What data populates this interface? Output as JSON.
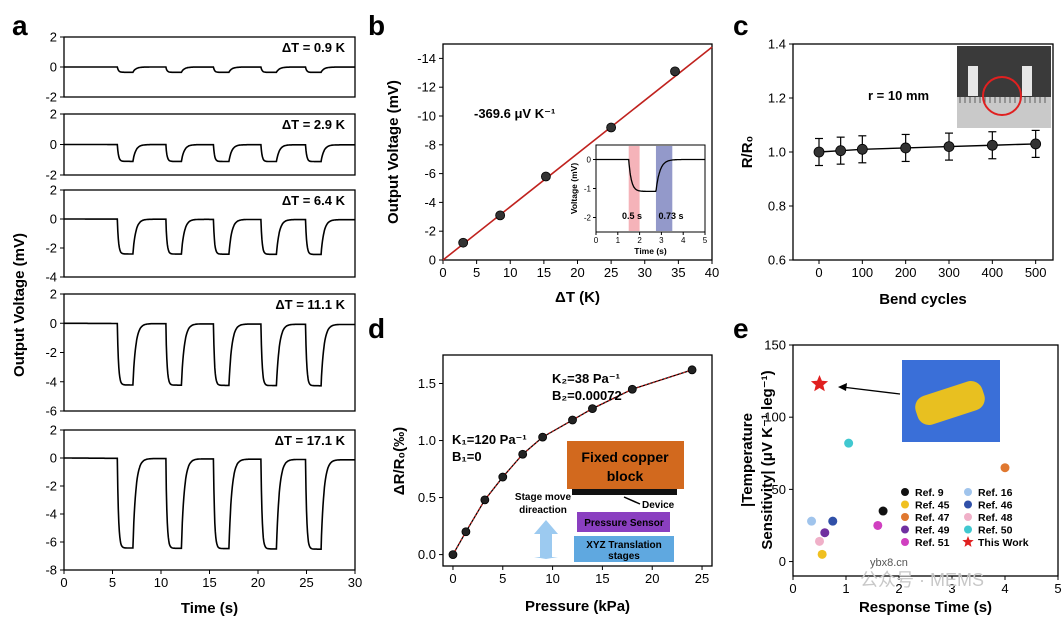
{
  "panel_labels": [
    "a",
    "b",
    "c",
    "d",
    "e"
  ],
  "chart_data": [
    {
      "panel": "a",
      "type": "line",
      "xlabel": "Time (s)",
      "ylabel": "Output Voltage (mV)",
      "xlim": [
        0,
        30
      ],
      "x_ticks": [
        "0",
        "5",
        "10",
        "15",
        "20",
        "25",
        "30"
      ],
      "pulse_starts_s": [
        5.5,
        10.5,
        15.4,
        20.3,
        24.9
      ],
      "pulse_width_s": 1.6,
      "series": [
        {
          "label": "ΔT = 0.9 K",
          "depth_mv": 0.35,
          "ylim": [
            -2,
            2
          ],
          "y_ticks": [
            "2",
            "0",
            "-2"
          ]
        },
        {
          "label": "ΔT = 2.9 K",
          "depth_mv": 1.1,
          "ylim": [
            -2,
            2
          ],
          "y_ticks": [
            "2",
            "0",
            "-2"
          ]
        },
        {
          "label": "ΔT = 6.4 K",
          "depth_mv": 2.4,
          "ylim": [
            -4,
            2
          ],
          "y_ticks": [
            "2",
            "0",
            "-2",
            "-4"
          ]
        },
        {
          "label": "ΔT = 11.1 K",
          "depth_mv": 4.2,
          "ylim": [
            -6,
            2
          ],
          "y_ticks": [
            "2",
            "0",
            "-2",
            "-4",
            "-6"
          ]
        },
        {
          "label": "ΔT = 17.1 K",
          "depth_mv": 6.4,
          "ylim": [
            -8,
            2
          ],
          "y_ticks": [
            "2",
            "0",
            "-2",
            "-4",
            "-6",
            "-8"
          ]
        }
      ]
    },
    {
      "panel": "b",
      "type": "scatter",
      "xlabel": "ΔT (K)",
      "ylabel": "Output Voltage (mV)",
      "xlim": [
        0,
        40
      ],
      "ylim": [
        0,
        -15
      ],
      "x_ticks": [
        "0",
        "5",
        "10",
        "15",
        "20",
        "25",
        "30",
        "35",
        "40"
      ],
      "y_ticks": [
        "0",
        "-2",
        "-4",
        "-6",
        "-8",
        "-10",
        "-12",
        "-14"
      ],
      "x": [
        3,
        8.5,
        15.3,
        25,
        34.5
      ],
      "y": [
        -1.2,
        -3.1,
        -5.8,
        -9.2,
        -13.1
      ],
      "fit_slope_mv_per_k": -0.3696,
      "annotation": "-369.6 μV K⁻¹",
      "inset": {
        "type": "line",
        "xlabel": "Time (s)",
        "ylabel": "Voltage (mV)",
        "x_ticks": [
          "0",
          "1",
          "2",
          "3",
          "4",
          "5"
        ],
        "y_ticks": [
          "0",
          "-1",
          "-2"
        ],
        "xlim": [
          0,
          5
        ],
        "ylim": [
          -2.5,
          0.5
        ],
        "fall_label": "0.5 s",
        "rise_label": "0.73 s",
        "fall_color": "#f2a0a8",
        "rise_color": "#7880bd"
      }
    },
    {
      "panel": "c",
      "type": "line",
      "xlabel": "Bend cycles",
      "ylabel": "R/R₀",
      "xlim": [
        -60,
        540
      ],
      "ylim": [
        0.6,
        1.4
      ],
      "x_ticks": [
        "0",
        "100",
        "200",
        "300",
        "400",
        "500"
      ],
      "y_ticks": [
        "0.6",
        "0.8",
        "1.0",
        "1.2",
        "1.4"
      ],
      "x": [
        0,
        50,
        100,
        200,
        300,
        400,
        500
      ],
      "y": [
        1.0,
        1.005,
        1.01,
        1.015,
        1.02,
        1.025,
        1.03
      ],
      "err": [
        0.05,
        0.05,
        0.05,
        0.05,
        0.05,
        0.05,
        0.05
      ],
      "annotation": "r = 10 mm"
    },
    {
      "panel": "d",
      "type": "scatter",
      "xlabel": "Pressure (kPa)",
      "ylabel": "ΔR/R₀(‰)",
      "xlim": [
        -1,
        26
      ],
      "ylim": [
        -0.1,
        1.75
      ],
      "x_ticks": [
        "0",
        "5",
        "10",
        "15",
        "20",
        "25"
      ],
      "y_ticks": [
        "0.0",
        "0.5",
        "1.0",
        "1.5"
      ],
      "x": [
        0,
        1.3,
        3.2,
        5,
        7,
        9,
        12,
        14,
        18,
        24
      ],
      "y": [
        0,
        0.2,
        0.48,
        0.68,
        0.88,
        1.03,
        1.18,
        1.28,
        1.45,
        1.62
      ],
      "fit1": {
        "k": "K₁=120 Pa⁻¹",
        "b": "B₁=0"
      },
      "fit2": {
        "k": "K₂=38 Pa⁻¹",
        "b": "B₂=0.00072"
      },
      "schematic": {
        "block": "Fixed copper block",
        "device": "Device",
        "sensor": "Pressure Sensor",
        "stage": "XYZ Translation stages",
        "stage_line1": "XYZ Translation",
        "stage_line2": "stages",
        "move": "Stage move direaction",
        "move_line1": "Stage move",
        "move_line2": "direaction",
        "block_color": "#d2691e",
        "sensor_color": "#8a3fc0",
        "stage_color": "#5fa8e0"
      }
    },
    {
      "panel": "e",
      "type": "scatter",
      "xlabel": "Response Time (s)",
      "ylabel": "|Temperature Sensitivity| (μV K⁻¹ leg⁻¹)",
      "ylabel_line1": "|Temperature",
      "ylabel_line2": "Sensitivity| (μV K⁻¹ leg⁻¹)",
      "xlim": [
        0,
        5
      ],
      "ylim": [
        -10,
        150
      ],
      "x_ticks": [
        "0",
        "1",
        "2",
        "3",
        "4",
        "5"
      ],
      "y_ticks": [
        "0",
        "50",
        "100",
        "150"
      ],
      "points": [
        {
          "ref": "Ref. 9",
          "x": 1.7,
          "y": 35,
          "color": "#111111"
        },
        {
          "ref": "Ref. 45",
          "x": 0.55,
          "y": 5,
          "color": "#f0c020"
        },
        {
          "ref": "Ref. 47",
          "x": 4.0,
          "y": 65,
          "color": "#e07830"
        },
        {
          "ref": "Ref. 49",
          "x": 0.6,
          "y": 20,
          "color": "#7030a0"
        },
        {
          "ref": "Ref. 51",
          "x": 1.6,
          "y": 25,
          "color": "#d040c0"
        },
        {
          "ref": "Ref. 16",
          "x": 0.35,
          "y": 28,
          "color": "#a0c4ec"
        },
        {
          "ref": "Ref. 46",
          "x": 0.75,
          "y": 28,
          "color": "#3050a8"
        },
        {
          "ref": "Ref. 48",
          "x": 0.5,
          "y": 14,
          "color": "#f0b0c8"
        },
        {
          "ref": "Ref. 50",
          "x": 1.05,
          "y": 82,
          "color": "#40c8d0"
        },
        {
          "ref": "This Work",
          "x": 0.5,
          "y": 123,
          "color": "#e02020",
          "marker": "star"
        }
      ],
      "legend_order": [
        "Ref. 9",
        "Ref. 16",
        "Ref. 45",
        "Ref. 46",
        "Ref. 47",
        "Ref. 48",
        "Ref. 49",
        "Ref. 50",
        "Ref. 51",
        "This Work"
      ]
    }
  ],
  "watermark": "公众号 · MEMS",
  "watermark_url": "ybx8.cn"
}
